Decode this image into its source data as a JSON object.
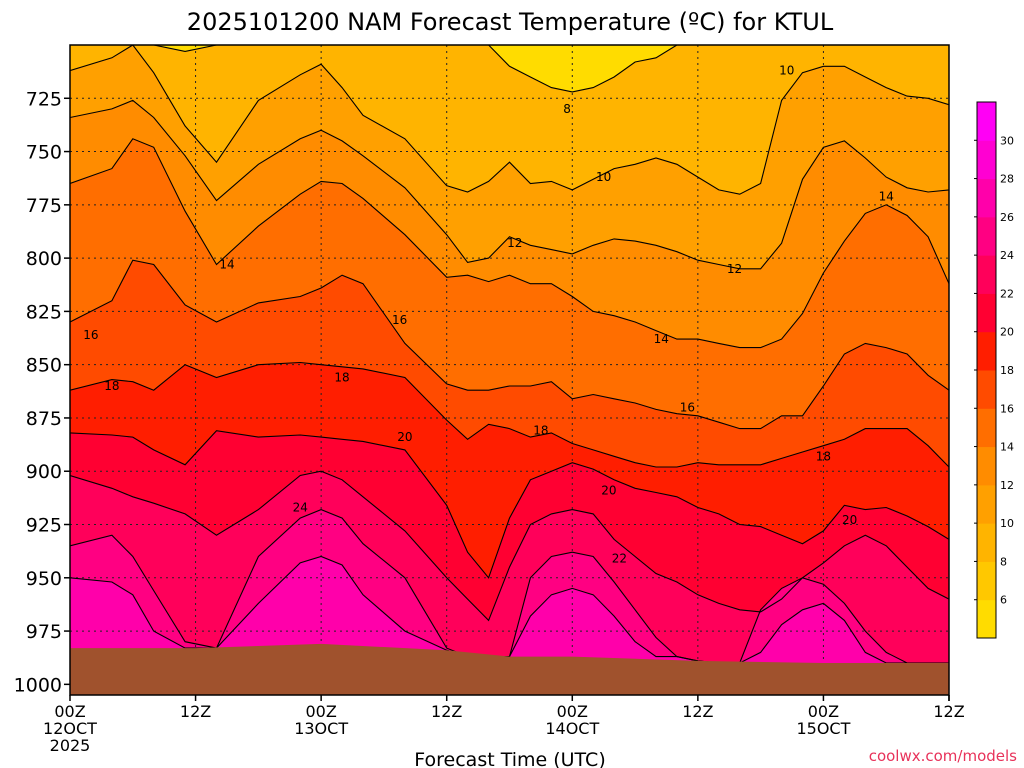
{
  "chart_data": {
    "type": "heatmap",
    "title": "2025101200 NAM Forecast Temperature (ºC) for KTUL",
    "xlabel": "Forecast Time (UTC)",
    "ylabel": "",
    "watermark": "coolwx.com/models",
    "y_axis": {
      "unit": "hPa",
      "inverted": true,
      "range": [
        700,
        1005
      ],
      "ticks": [
        725,
        750,
        775,
        800,
        825,
        850,
        875,
        900,
        925,
        950,
        975,
        1000
      ]
    },
    "x_axis": {
      "range": [
        "2025-10-12 00Z",
        "2025-10-15 12Z"
      ],
      "ticks": [
        {
          "hour": 0,
          "line1": "00Z",
          "line2": "12OCT",
          "line3": "2025"
        },
        {
          "hour": 12,
          "line1": "12Z",
          "line2": "",
          "line3": ""
        },
        {
          "hour": 24,
          "line1": "00Z",
          "line2": "13OCT",
          "line3": ""
        },
        {
          "hour": 36,
          "line1": "12Z",
          "line2": "",
          "line3": ""
        },
        {
          "hour": 48,
          "line1": "00Z",
          "line2": "14OCT",
          "line3": ""
        },
        {
          "hour": 60,
          "line1": "12Z",
          "line2": "",
          "line3": ""
        },
        {
          "hour": 72,
          "line1": "00Z",
          "line2": "15OCT",
          "line3": ""
        },
        {
          "hour": 84,
          "line1": "12Z",
          "line2": "",
          "line3": ""
        }
      ]
    },
    "grid": true,
    "colorbar": {
      "placement": "right",
      "levels": [
        4,
        6,
        8,
        10,
        12,
        14,
        16,
        18,
        20,
        22,
        24,
        26,
        28,
        30,
        32
      ],
      "labels": [
        "6",
        "8",
        "10",
        "12",
        "14",
        "16",
        "18",
        "20",
        "22",
        "24",
        "26",
        "28",
        "30"
      ],
      "colors": [
        "#ffdc00",
        "#ffc800",
        "#ffb400",
        "#ffa000",
        "#ff8c00",
        "#ff6e00",
        "#ff4b00",
        "#ff1e00",
        "#ff0032",
        "#ff005a",
        "#ff0082",
        "#ff00aa",
        "#ff00d2",
        "#ff00f5"
      ]
    },
    "surface_pressure_hpa": {
      "hours": [
        0,
        12,
        24,
        36,
        42,
        48,
        60,
        72,
        84
      ],
      "pressure": [
        983,
        983,
        981,
        984,
        987,
        987,
        989,
        990,
        990
      ]
    },
    "contour_labels": [
      {
        "text": "8",
        "hour": 47.5,
        "p": 730
      },
      {
        "text": "10",
        "hour": 51,
        "p": 762
      },
      {
        "text": "10",
        "hour": 68.5,
        "p": 712
      },
      {
        "text": "12",
        "hour": 42.5,
        "p": 793
      },
      {
        "text": "12",
        "hour": 63.5,
        "p": 805
      },
      {
        "text": "14",
        "hour": 15,
        "p": 803
      },
      {
        "text": "14",
        "hour": 56.5,
        "p": 838
      },
      {
        "text": "14",
        "hour": 78,
        "p": 771
      },
      {
        "text": "16",
        "hour": 2,
        "p": 836
      },
      {
        "text": "16",
        "hour": 31.5,
        "p": 829
      },
      {
        "text": "16",
        "hour": 59,
        "p": 870
      },
      {
        "text": "18",
        "hour": 4,
        "p": 860
      },
      {
        "text": "18",
        "hour": 26,
        "p": 856
      },
      {
        "text": "18",
        "hour": 45,
        "p": 881
      },
      {
        "text": "18",
        "hour": 72,
        "p": 893
      },
      {
        "text": "20",
        "hour": 32,
        "p": 884
      },
      {
        "text": "20",
        "hour": 51.5,
        "p": 909
      },
      {
        "text": "20",
        "hour": 74.5,
        "p": 923
      },
      {
        "text": "22",
        "hour": 52.5,
        "p": 941
      },
      {
        "text": "24",
        "hour": 22,
        "p": 917
      }
    ],
    "isotherm_profiles": {
      "hours": [
        0,
        4,
        6,
        8,
        11,
        14,
        18,
        22,
        24,
        26,
        28,
        32,
        36,
        38,
        40,
        42,
        44,
        46,
        48,
        50,
        52,
        54,
        56,
        58,
        60,
        62,
        64,
        66,
        68,
        70,
        72,
        74,
        76,
        78,
        80,
        82,
        84
      ],
      "levels": [
        {
          "temp": 8,
          "p": [
            700,
            700,
            700,
            700,
            703,
            700,
            700,
            700,
            700,
            700,
            700,
            700,
            700,
            700,
            700,
            710,
            715,
            720,
            722,
            720,
            715,
            708,
            706,
            700,
            700,
            700,
            700,
            700,
            700,
            700,
            700,
            700,
            700,
            700,
            700,
            700,
            700
          ]
        },
        {
          "temp": 10,
          "p": [
            712,
            706,
            700,
            713,
            738,
            755,
            726,
            714,
            709,
            720,
            733,
            744,
            766,
            769,
            764,
            755,
            765,
            764,
            768,
            763,
            758,
            756,
            753,
            756,
            762,
            768,
            770,
            765,
            726,
            713,
            710,
            710,
            715,
            720,
            724,
            725,
            728
          ]
        },
        {
          "temp": 12,
          "p": [
            734,
            730,
            726,
            734,
            752,
            773,
            756,
            744,
            740,
            745,
            752,
            767,
            789,
            802,
            800,
            790,
            794,
            796,
            798,
            794,
            791,
            792,
            794,
            797,
            801,
            803,
            805,
            805,
            793,
            763,
            748,
            745,
            753,
            762,
            767,
            769,
            768
          ]
        },
        {
          "temp": 14,
          "p": [
            765,
            758,
            744,
            748,
            778,
            803,
            785,
            770,
            764,
            765,
            772,
            789,
            809,
            808,
            811,
            808,
            812,
            812,
            818,
            825,
            827,
            830,
            834,
            838,
            838,
            840,
            842,
            842,
            838,
            826,
            807,
            792,
            779,
            775,
            780,
            790,
            812
          ]
        },
        {
          "temp": 16,
          "p": [
            830,
            820,
            801,
            803,
            822,
            830,
            821,
            818,
            814,
            808,
            812,
            840,
            859,
            862,
            862,
            860,
            860,
            858,
            866,
            864,
            866,
            868,
            871,
            873,
            874,
            877,
            880,
            880,
            874,
            874,
            860,
            845,
            840,
            842,
            845,
            855,
            862
          ]
        },
        {
          "temp": 18,
          "p": [
            862,
            857,
            858,
            862,
            850,
            856,
            850,
            849,
            850,
            851,
            852,
            856,
            876,
            885,
            878,
            880,
            884,
            882,
            887,
            890,
            893,
            896,
            898,
            898,
            896,
            897,
            897,
            897,
            894,
            891,
            888,
            885,
            880,
            880,
            880,
            888,
            898
          ]
        },
        {
          "temp": 20,
          "p": [
            882,
            883,
            884,
            890,
            897,
            881,
            884,
            883,
            884,
            885,
            886,
            890,
            916,
            938,
            950,
            922,
            904,
            900,
            896,
            899,
            904,
            908,
            910,
            912,
            917,
            920,
            925,
            926,
            930,
            934,
            928,
            916,
            918,
            917,
            921,
            926,
            932
          ]
        },
        {
          "temp": 22,
          "p": [
            902,
            908,
            912,
            915,
            920,
            930,
            918,
            902,
            900,
            904,
            912,
            928,
            950,
            960,
            970,
            945,
            925,
            920,
            918,
            920,
            932,
            940,
            948,
            952,
            958,
            962,
            965,
            966,
            960,
            950,
            943,
            935,
            930,
            935,
            945,
            955,
            960
          ]
        },
        {
          "temp": 24,
          "p": [
            935,
            930,
            940,
            956,
            980,
            983,
            940,
            922,
            918,
            922,
            934,
            950,
            983,
            987,
            987,
            987,
            950,
            940,
            938,
            940,
            952,
            965,
            978,
            987,
            989,
            990,
            990,
            965,
            955,
            950,
            953,
            962,
            975,
            985,
            990,
            990,
            990
          ]
        },
        {
          "temp": 26,
          "p": [
            950,
            952,
            958,
            975,
            983,
            983,
            962,
            943,
            940,
            944,
            958,
            975,
            984,
            987,
            987,
            987,
            968,
            958,
            955,
            958,
            968,
            980,
            987,
            987,
            989,
            990,
            990,
            985,
            972,
            965,
            962,
            970,
            985,
            990,
            990,
            990,
            990
          ]
        }
      ]
    }
  }
}
